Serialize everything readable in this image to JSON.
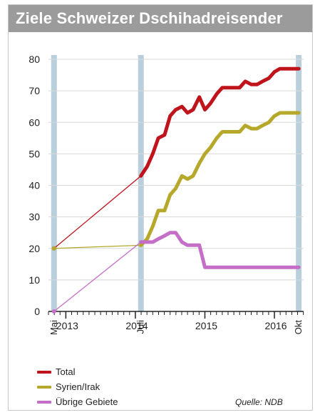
{
  "chart_data": {
    "type": "line",
    "title": "Ziele Schweizer Dschihadreisender",
    "source": "Quelle: NDB",
    "ylim": [
      0,
      80
    ],
    "yticks": [
      0,
      10,
      20,
      30,
      40,
      50,
      60,
      70,
      80
    ],
    "x_year_labels": [
      {
        "label": "2013",
        "t": 2013.0
      },
      {
        "label": "2014",
        "t": 2014.0
      },
      {
        "label": "2015",
        "t": 2015.0
      },
      {
        "label": "2016",
        "t": 2016.0
      }
    ],
    "highlight_columns": [
      {
        "label": "Mai",
        "t": 2012.83
      },
      {
        "label": "Juli",
        "t": 2014.08
      },
      {
        "label": "Okt",
        "t": 2016.35
      }
    ],
    "xlim": [
      2012.75,
      2016.42
    ],
    "grid": true,
    "legend_position": "bottom-left",
    "series": [
      {
        "name": "Total",
        "color": "#c0141c",
        "dashed_segment": {
          "from": [
            2012.83,
            20
          ],
          "to": [
            2014.08,
            43
          ]
        },
        "points": [
          [
            2014.08,
            43
          ],
          [
            2014.17,
            46
          ],
          [
            2014.25,
            50
          ],
          [
            2014.33,
            55
          ],
          [
            2014.42,
            56
          ],
          [
            2014.5,
            62
          ],
          [
            2014.58,
            64
          ],
          [
            2014.67,
            65
          ],
          [
            2014.75,
            63
          ],
          [
            2014.83,
            64
          ],
          [
            2014.92,
            68
          ],
          [
            2015.0,
            64
          ],
          [
            2015.08,
            66
          ],
          [
            2015.17,
            69
          ],
          [
            2015.25,
            71
          ],
          [
            2015.33,
            71
          ],
          [
            2015.42,
            71
          ],
          [
            2015.5,
            71
          ],
          [
            2015.58,
            73
          ],
          [
            2015.67,
            72
          ],
          [
            2015.75,
            72
          ],
          [
            2015.83,
            73
          ],
          [
            2015.92,
            74
          ],
          [
            2016.0,
            76
          ],
          [
            2016.08,
            77
          ],
          [
            2016.17,
            77
          ],
          [
            2016.25,
            77
          ],
          [
            2016.35,
            77
          ]
        ]
      },
      {
        "name": "Syrien/Irak",
        "color": "#b5a82a",
        "dashed_segment": {
          "from": [
            2012.83,
            20
          ],
          "to": [
            2014.08,
            21
          ]
        },
        "points": [
          [
            2014.08,
            21
          ],
          [
            2014.17,
            23
          ],
          [
            2014.25,
            27
          ],
          [
            2014.33,
            32
          ],
          [
            2014.42,
            32
          ],
          [
            2014.5,
            37
          ],
          [
            2014.58,
            39
          ],
          [
            2014.67,
            43
          ],
          [
            2014.75,
            42
          ],
          [
            2014.83,
            43
          ],
          [
            2014.92,
            47
          ],
          [
            2015.0,
            50
          ],
          [
            2015.08,
            52
          ],
          [
            2015.17,
            55
          ],
          [
            2015.25,
            57
          ],
          [
            2015.33,
            57
          ],
          [
            2015.42,
            57
          ],
          [
            2015.5,
            57
          ],
          [
            2015.58,
            59
          ],
          [
            2015.67,
            58
          ],
          [
            2015.75,
            58
          ],
          [
            2015.83,
            59
          ],
          [
            2015.92,
            60
          ],
          [
            2016.0,
            62
          ],
          [
            2016.08,
            63
          ],
          [
            2016.17,
            63
          ],
          [
            2016.25,
            63
          ],
          [
            2016.35,
            63
          ]
        ]
      },
      {
        "name": "Übrige Gebiete",
        "color": "#c46ec8",
        "dashed_segment": {
          "from": [
            2012.83,
            0
          ],
          "to": [
            2014.08,
            22
          ]
        },
        "points": [
          [
            2014.08,
            22
          ],
          [
            2014.17,
            22
          ],
          [
            2014.25,
            22
          ],
          [
            2014.33,
            23
          ],
          [
            2014.42,
            24
          ],
          [
            2014.5,
            25
          ],
          [
            2014.58,
            25
          ],
          [
            2014.67,
            22
          ],
          [
            2014.75,
            21
          ],
          [
            2014.83,
            21
          ],
          [
            2014.92,
            21
          ],
          [
            2015.0,
            14
          ],
          [
            2015.08,
            14
          ],
          [
            2015.25,
            14
          ],
          [
            2015.5,
            14
          ],
          [
            2015.75,
            14
          ],
          [
            2016.0,
            14
          ],
          [
            2016.17,
            14
          ],
          [
            2016.35,
            14
          ]
        ]
      }
    ]
  }
}
